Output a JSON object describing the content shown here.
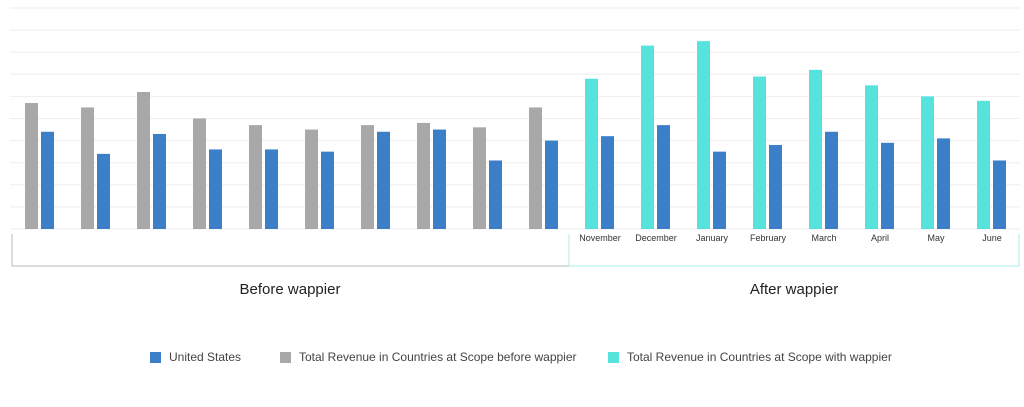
{
  "colors": {
    "us": "#3a7fc8",
    "before": "#a8a8a8",
    "after": "#56e3de",
    "grid": "#eeeeee",
    "bracket_before": "#b8b8b8",
    "bracket_after": "#a7ecea"
  },
  "chart_data": {
    "type": "bar",
    "title": "",
    "xlabel": "",
    "ylabel": "",
    "ylim": [
      0,
      100
    ],
    "grid": true,
    "legend_position": "bottom",
    "period_labels": [
      "Before wappier",
      "After wappier"
    ],
    "categories": [
      "",
      "",
      "",
      "",
      "",
      "",
      "",
      "",
      "",
      "",
      "November",
      "December",
      "January",
      "February",
      "March",
      "April",
      "May",
      "June"
    ],
    "series": [
      {
        "name": "United States",
        "color_key": "us",
        "values": [
          44,
          34,
          43,
          36,
          36,
          35,
          44,
          45,
          31,
          40,
          42,
          47,
          35,
          38,
          44,
          39,
          41,
          31
        ]
      },
      {
        "name": "Total Revenue in Countries at Scope before wappier",
        "color_key": "before",
        "values": [
          57,
          55,
          62,
          50,
          47,
          45,
          47,
          48,
          46,
          55,
          null,
          null,
          null,
          null,
          null,
          null,
          null,
          null
        ]
      },
      {
        "name": "Total Revenue in Countries at Scope with wappier",
        "color_key": "after",
        "values": [
          null,
          null,
          null,
          null,
          null,
          null,
          null,
          null,
          null,
          null,
          68,
          83,
          85,
          69,
          72,
          65,
          60,
          58
        ]
      }
    ]
  }
}
